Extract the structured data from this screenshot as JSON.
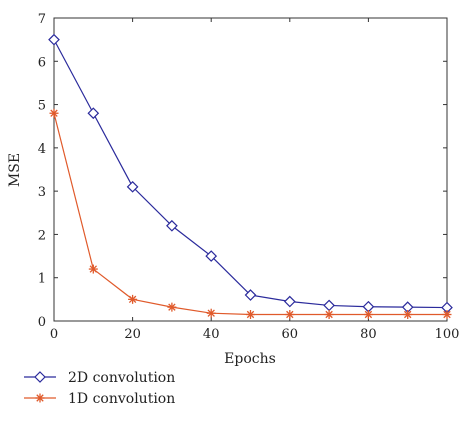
{
  "chart_data": {
    "type": "line",
    "xlabel": "Epochs",
    "ylabel": "MSE",
    "xlim": [
      0,
      100
    ],
    "ylim": [
      0,
      7
    ],
    "xticks": [
      0,
      20,
      40,
      60,
      80,
      100
    ],
    "yticks": [
      0,
      1,
      2,
      3,
      4,
      5,
      6,
      7
    ],
    "grid": false,
    "legend_position": "bottom-left, below plot",
    "x": [
      0,
      10,
      20,
      30,
      40,
      50,
      60,
      70,
      80,
      90,
      100
    ],
    "series": [
      {
        "name": "2D convolution",
        "marker": "diamond",
        "color": "#2b2b9c",
        "values": [
          6.5,
          4.8,
          3.1,
          2.2,
          1.5,
          0.6,
          0.45,
          0.36,
          0.33,
          0.32,
          0.31
        ]
      },
      {
        "name": "1D convolution",
        "marker": "star",
        "color": "#e05a2b",
        "values": [
          4.8,
          1.2,
          0.5,
          0.32,
          0.18,
          0.15,
          0.15,
          0.15,
          0.15,
          0.15,
          0.15
        ]
      }
    ]
  }
}
